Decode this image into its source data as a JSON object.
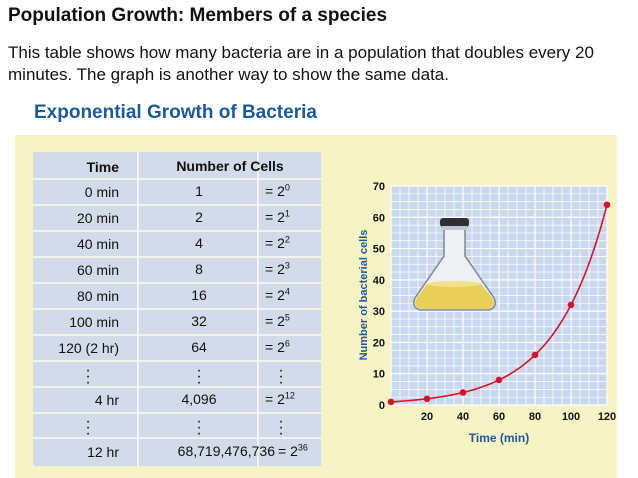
{
  "page": {
    "title": "Population Growth:  Members of a species",
    "intro": "This table shows how many bacteria are in a population that doubles every 20 minutes. The graph is another way to show the same data.",
    "panel_title": "Exponential Growth of Bacteria"
  },
  "table": {
    "headers": [
      "Time",
      "Number of Cells"
    ],
    "rows": [
      {
        "time": "0 min",
        "count": "1",
        "base": "= 2",
        "exp": "0"
      },
      {
        "time": "20 min",
        "count": "2",
        "base": "= 2",
        "exp": "1"
      },
      {
        "time": "40 min",
        "count": "4",
        "base": "= 2",
        "exp": "2"
      },
      {
        "time": "60 min",
        "count": "8",
        "base": "= 2",
        "exp": "3"
      },
      {
        "time": "80 min",
        "count": "16",
        "base": "= 2",
        "exp": "4"
      },
      {
        "time": "100 min",
        "count": "32",
        "base": "= 2",
        "exp": "5"
      },
      {
        "time": "120 (2 hr)",
        "count": "64",
        "base": "= 2",
        "exp": "6"
      },
      {
        "time": "4 hr",
        "count": "4,096",
        "base": "= 2",
        "exp": "12"
      },
      {
        "time": "12 hr",
        "count": "68,719,476,736",
        "base": "= 2",
        "exp": "36"
      }
    ]
  },
  "chart_data": {
    "type": "line",
    "x": [
      0,
      20,
      40,
      60,
      80,
      100,
      120
    ],
    "y": [
      1,
      2,
      4,
      8,
      16,
      32,
      64
    ],
    "xlabel": "Time (min)",
    "ylabel": "Number of bacterial cells",
    "x_ticks": [
      "20",
      "40",
      "60",
      "80",
      "100",
      "120"
    ],
    "y_ticks": [
      "0",
      "10",
      "20",
      "30",
      "40",
      "50",
      "60",
      "70"
    ],
    "xlim": [
      0,
      120
    ],
    "ylim": [
      0,
      70
    ],
    "grid": true,
    "colors": {
      "line": "#d6132a",
      "grid": "#ffffff",
      "plot_bg": "#c9d8ee",
      "axis_label": "#1d5a98"
    }
  }
}
